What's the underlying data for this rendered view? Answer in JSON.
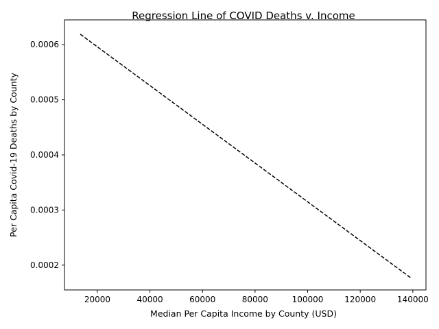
{
  "chart_data": {
    "type": "line",
    "title": "Regression Line of COVID Deaths v. Income",
    "xlabel": "Median Per Capita Income by County (USD)",
    "ylabel": "Per Capita Covid-19 Deaths by County",
    "xlim": [
      7500,
      145000
    ],
    "ylim": [
      0.000155,
      0.000645
    ],
    "xticks": [
      20000,
      40000,
      60000,
      80000,
      100000,
      120000,
      140000
    ],
    "yticks": [
      0.0002,
      0.0003,
      0.0004,
      0.0005,
      0.0006
    ],
    "xtick_labels": [
      "20000",
      "40000",
      "60000",
      "80000",
      "100000",
      "120000",
      "140000"
    ],
    "ytick_labels": [
      "0.0002",
      "0.0003",
      "0.0004",
      "0.0005",
      "0.0006"
    ],
    "grid": false,
    "series": [
      {
        "line_style": "dashed",
        "color": "#000000",
        "x": [
          13500,
          139500
        ],
        "y": [
          0.000619,
          0.000176
        ]
      }
    ]
  }
}
